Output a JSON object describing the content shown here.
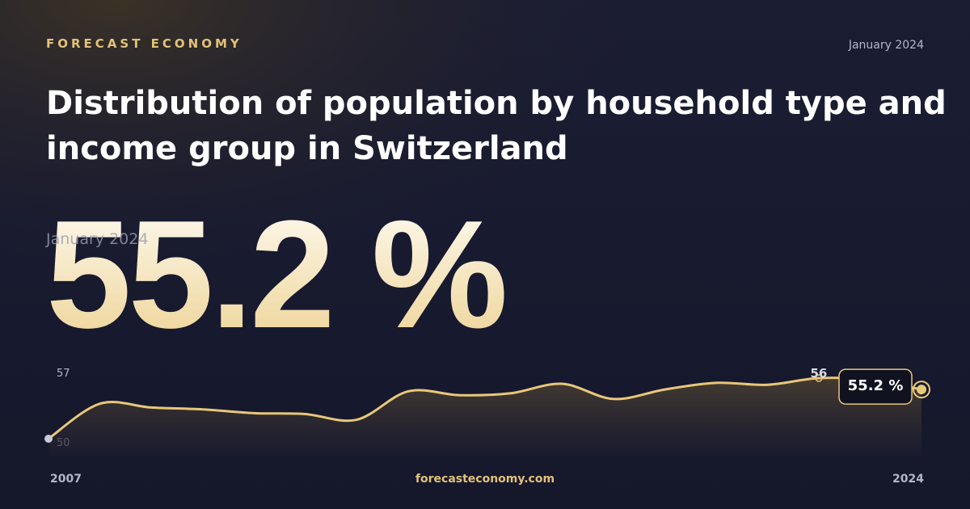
{
  "header": {
    "brand": "FORECAST ECONOMY",
    "date": "January 2024"
  },
  "title": "Distribution of population by household type and income group in Switzerland",
  "headline": {
    "date": "January 2024",
    "value": 55.2,
    "label": "55.2 %"
  },
  "footer": {
    "site": "forecasteconomy.com"
  },
  "chart_data": {
    "type": "line",
    "x": [
      2007,
      2008,
      2009,
      2010,
      2011,
      2012,
      2013,
      2014,
      2015,
      2016,
      2017,
      2018,
      2019,
      2020,
      2021,
      2022,
      2023,
      2024
    ],
    "series": [
      {
        "color": "#e8c77a",
        "values": [
          50.0,
          53.7,
          53.3,
          53.1,
          52.7,
          52.6,
          52.0,
          55.0,
          54.6,
          54.8,
          55.8,
          54.2,
          55.2,
          55.9,
          55.7,
          56.4,
          56.2,
          55.2
        ],
        "value_labels": [
          null,
          null,
          null,
          null,
          null,
          null,
          null,
          null,
          null,
          null,
          null,
          null,
          null,
          null,
          null,
          "56",
          null,
          "55.2 %"
        ]
      }
    ],
    "xlim": [
      2007,
      2024
    ],
    "xticks": [
      2007,
      2024
    ],
    "ylim": [
      50,
      57
    ],
    "yticks": [
      57,
      50
    ]
  }
}
